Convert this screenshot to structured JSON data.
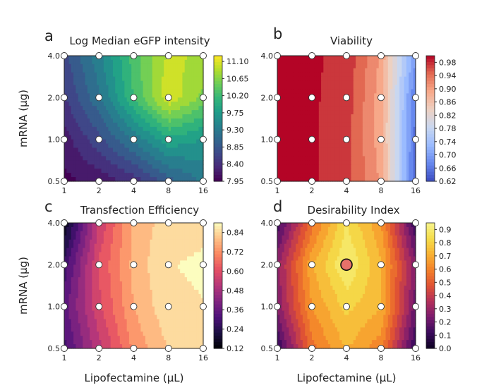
{
  "chart_data": [
    {
      "type": "heatmap",
      "panel_letter": "a",
      "title": "Log Median eGFP intensity",
      "xlabel": "",
      "ylabel": "mRNA (μg)",
      "x": [
        1,
        2,
        4,
        8,
        16
      ],
      "y": [
        0.5,
        1.0,
        2.0,
        4.0
      ],
      "x_ticks": [
        "1",
        "2",
        "4",
        "8",
        "16"
      ],
      "y_ticks": [
        "0.5",
        "1.0",
        "2.0",
        "4.0"
      ],
      "x_scale": "log2",
      "y_scale": "log2",
      "colormap": "viridis",
      "clim": [
        7.95,
        11.25
      ],
      "colorbar_ticks": [
        "7.95",
        "8.40",
        "8.85",
        "9.30",
        "9.75",
        "10.20",
        "10.65",
        "11.10"
      ],
      "z": [
        [
          8.0,
          8.15,
          8.4,
          8.9,
          9.3
        ],
        [
          8.2,
          8.7,
          9.3,
          9.9,
          9.7
        ],
        [
          8.5,
          9.2,
          10.2,
          11.1,
          10.6
        ],
        [
          8.7,
          9.4,
          10.3,
          10.95,
          10.85
        ]
      ],
      "design_points": [
        [
          1,
          0.5
        ],
        [
          2,
          0.5
        ],
        [
          4,
          0.5
        ],
        [
          8,
          0.5
        ],
        [
          16,
          0.5
        ],
        [
          1,
          1.0
        ],
        [
          2,
          1.0
        ],
        [
          4,
          1.0
        ],
        [
          8,
          1.0
        ],
        [
          16,
          1.0
        ],
        [
          1,
          2.0
        ],
        [
          2,
          2.0
        ],
        [
          4,
          2.0
        ],
        [
          8,
          2.0
        ],
        [
          16,
          2.0
        ],
        [
          1,
          4.0
        ],
        [
          2,
          4.0
        ],
        [
          4,
          4.0
        ],
        [
          8,
          4.0
        ],
        [
          16,
          4.0
        ]
      ],
      "optimum_point": null
    },
    {
      "type": "heatmap",
      "panel_letter": "b",
      "title": "Viability",
      "xlabel": "",
      "ylabel": "",
      "x": [
        1,
        2,
        4,
        8,
        16
      ],
      "y": [
        0.5,
        1.0,
        2.0,
        4.0
      ],
      "x_ticks": [
        "1",
        "2",
        "4",
        "8",
        "16"
      ],
      "y_ticks": [
        "0.5",
        "1.0",
        "2.0",
        "4.0"
      ],
      "x_scale": "log2",
      "y_scale": "log2",
      "colormap": "coolwarm",
      "clim": [
        0.62,
        1.0
      ],
      "colorbar_ticks": [
        "0.62",
        "0.66",
        "0.70",
        "0.74",
        "0.78",
        "0.82",
        "0.86",
        "0.90",
        "0.94",
        "0.98"
      ],
      "z": [
        [
          0.99,
          0.99,
          0.97,
          0.9,
          0.64
        ],
        [
          0.99,
          0.99,
          0.97,
          0.89,
          0.65
        ],
        [
          0.99,
          0.99,
          0.975,
          0.89,
          0.66
        ],
        [
          0.99,
          0.99,
          0.98,
          0.9,
          0.69
        ]
      ],
      "design_points": [
        [
          1,
          0.5
        ],
        [
          2,
          0.5
        ],
        [
          4,
          0.5
        ],
        [
          8,
          0.5
        ],
        [
          16,
          0.5
        ],
        [
          1,
          1.0
        ],
        [
          2,
          1.0
        ],
        [
          4,
          1.0
        ],
        [
          8,
          1.0
        ],
        [
          16,
          1.0
        ],
        [
          1,
          2.0
        ],
        [
          2,
          2.0
        ],
        [
          4,
          2.0
        ],
        [
          8,
          2.0
        ],
        [
          16,
          2.0
        ],
        [
          1,
          4.0
        ],
        [
          2,
          4.0
        ],
        [
          4,
          4.0
        ],
        [
          8,
          4.0
        ],
        [
          16,
          4.0
        ]
      ],
      "optimum_point": null
    },
    {
      "type": "heatmap",
      "panel_letter": "c",
      "title": "Transfection Efficiency",
      "xlabel": "Lipofectamine (μL)",
      "ylabel": "mRNA (μg)",
      "x": [
        1,
        2,
        4,
        8,
        16
      ],
      "y": [
        0.5,
        1.0,
        2.0,
        4.0
      ],
      "x_ticks": [
        "1",
        "2",
        "4",
        "8",
        "16"
      ],
      "y_ticks": [
        "0.5",
        "1.0",
        "2.0",
        "4.0"
      ],
      "x_scale": "log2",
      "y_scale": "log2",
      "colormap": "magma",
      "clim": [
        0.12,
        0.9
      ],
      "colorbar_ticks": [
        "0.12",
        "0.24",
        "0.36",
        "0.48",
        "0.60",
        "0.72",
        "0.84"
      ],
      "z": [
        [
          0.3,
          0.52,
          0.72,
          0.82,
          0.84
        ],
        [
          0.35,
          0.58,
          0.76,
          0.86,
          0.87
        ],
        [
          0.28,
          0.6,
          0.78,
          0.87,
          0.88
        ],
        [
          0.15,
          0.55,
          0.77,
          0.85,
          0.86
        ]
      ],
      "design_points": [
        [
          1,
          0.5
        ],
        [
          2,
          0.5
        ],
        [
          4,
          0.5
        ],
        [
          8,
          0.5
        ],
        [
          16,
          0.5
        ],
        [
          1,
          1.0
        ],
        [
          2,
          1.0
        ],
        [
          4,
          1.0
        ],
        [
          8,
          1.0
        ],
        [
          16,
          1.0
        ],
        [
          1,
          2.0
        ],
        [
          2,
          2.0
        ],
        [
          4,
          2.0
        ],
        [
          8,
          2.0
        ],
        [
          16,
          2.0
        ],
        [
          1,
          4.0
        ],
        [
          2,
          4.0
        ],
        [
          4,
          4.0
        ],
        [
          8,
          4.0
        ],
        [
          16,
          4.0
        ]
      ],
      "optimum_point": null
    },
    {
      "type": "heatmap",
      "panel_letter": "d",
      "title": "Desirability Index",
      "xlabel": "Lipofectamine (μL)",
      "ylabel": "",
      "x": [
        1,
        2,
        4,
        8,
        16
      ],
      "y": [
        0.5,
        1.0,
        2.0,
        4.0
      ],
      "x_ticks": [
        "1",
        "2",
        "4",
        "8",
        "16"
      ],
      "y_ticks": [
        "0.5",
        "1.0",
        "2.0",
        "4.0"
      ],
      "x_scale": "log2",
      "y_scale": "log2",
      "colormap": "plasma_like",
      "clim": [
        0.0,
        0.95
      ],
      "colorbar_ticks": [
        "0.0",
        "0.1",
        "0.2",
        "0.3",
        "0.4",
        "0.5",
        "0.6",
        "0.7",
        "0.8",
        "0.9"
      ],
      "z": [
        [
          0.1,
          0.55,
          0.72,
          0.6,
          0.1
        ],
        [
          0.25,
          0.65,
          0.8,
          0.72,
          0.2
        ],
        [
          0.28,
          0.7,
          0.92,
          0.72,
          0.25
        ],
        [
          0.12,
          0.55,
          0.85,
          0.65,
          0.1
        ]
      ],
      "design_points": [
        [
          1,
          0.5
        ],
        [
          2,
          0.5
        ],
        [
          4,
          0.5
        ],
        [
          8,
          0.5
        ],
        [
          16,
          0.5
        ],
        [
          1,
          1.0
        ],
        [
          2,
          1.0
        ],
        [
          4,
          1.0
        ],
        [
          8,
          1.0
        ],
        [
          16,
          1.0
        ],
        [
          1,
          2.0
        ],
        [
          2,
          2.0
        ],
        [
          4,
          2.0
        ],
        [
          8,
          2.0
        ],
        [
          16,
          2.0
        ],
        [
          1,
          4.0
        ],
        [
          2,
          4.0
        ],
        [
          4,
          4.0
        ],
        [
          8,
          4.0
        ],
        [
          16,
          4.0
        ]
      ],
      "optimum_point": [
        4,
        2.0
      ],
      "optimum_color": "#e8716a"
    }
  ]
}
